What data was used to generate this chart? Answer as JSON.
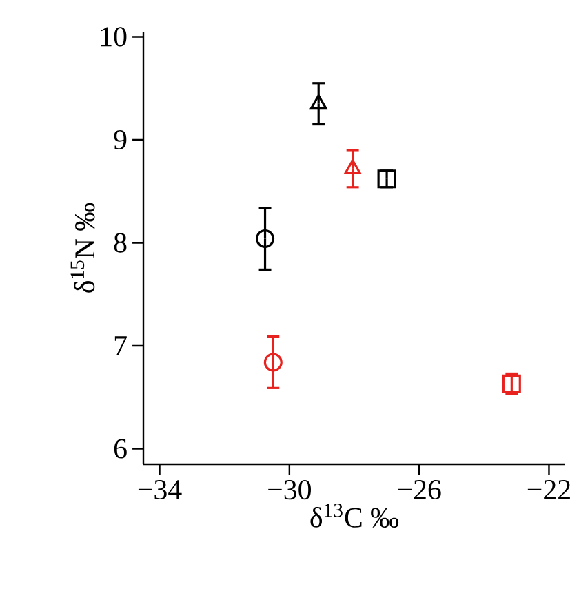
{
  "chart_data": {
    "type": "scatter",
    "xlabel": "δ$^{13}$C ‰",
    "ylabel": "δ$^{15}$N ‰",
    "xlim": [
      -34.5,
      -21.5
    ],
    "ylim": [
      5.85,
      10.05
    ],
    "xticks": [
      {
        "value": -34,
        "label": "−34"
      },
      {
        "value": -30,
        "label": "−30"
      },
      {
        "value": -26,
        "label": "−26"
      },
      {
        "value": -22,
        "label": "−22"
      }
    ],
    "yticks": [
      6,
      7,
      8,
      9,
      10
    ],
    "series": [
      {
        "color": "#000000",
        "marker": "triangle",
        "x": [
          -29.1
        ],
        "values": [
          9.35
        ],
        "errors": [
          0.2
        ]
      },
      {
        "color": "#000000",
        "marker": "square",
        "x": [
          -27.0
        ],
        "values": [
          8.62
        ],
        "errors": [
          0.08
        ]
      },
      {
        "color": "#000000",
        "marker": "circle",
        "x": [
          -30.75
        ],
        "values": [
          8.04
        ],
        "errors": [
          0.3
        ]
      },
      {
        "color": "#e8231f",
        "marker": "triangle",
        "x": [
          -28.05
        ],
        "values": [
          8.72
        ],
        "errors": [
          0.18
        ]
      },
      {
        "color": "#e8231f",
        "marker": "circle",
        "x": [
          -30.5
        ],
        "values": [
          6.84
        ],
        "errors": [
          0.25
        ]
      },
      {
        "color": "#e8231f",
        "marker": "square",
        "x": [
          -23.15
        ],
        "values": [
          6.63
        ],
        "errors": [
          0.1
        ]
      }
    ]
  }
}
